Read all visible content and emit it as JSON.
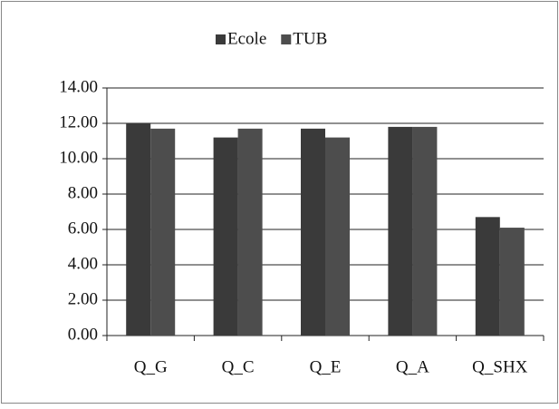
{
  "chart_data": {
    "type": "bar",
    "categories": [
      "Q_G",
      "Q_C",
      "Q_E",
      "Q_A",
      "Q_SHX"
    ],
    "series": [
      {
        "name": "Ecole",
        "color": "#3a3a3a",
        "values": [
          12.0,
          11.2,
          11.7,
          11.8,
          6.7
        ]
      },
      {
        "name": "TUB",
        "color": "#4d4d4d",
        "values": [
          11.7,
          11.7,
          11.2,
          11.8,
          6.1
        ]
      }
    ],
    "ylim": [
      0,
      14
    ],
    "yticks": [
      {
        "value": 0,
        "label": "0.00"
      },
      {
        "value": 2,
        "label": "2.00"
      },
      {
        "value": 4,
        "label": "4.00"
      },
      {
        "value": 6,
        "label": "6.00"
      },
      {
        "value": 8,
        "label": "8.00"
      },
      {
        "value": 10,
        "label": "10.00"
      },
      {
        "value": 12,
        "label": "12.00"
      },
      {
        "value": 14,
        "label": "14.00"
      }
    ],
    "grid": true,
    "legend": "top"
  }
}
